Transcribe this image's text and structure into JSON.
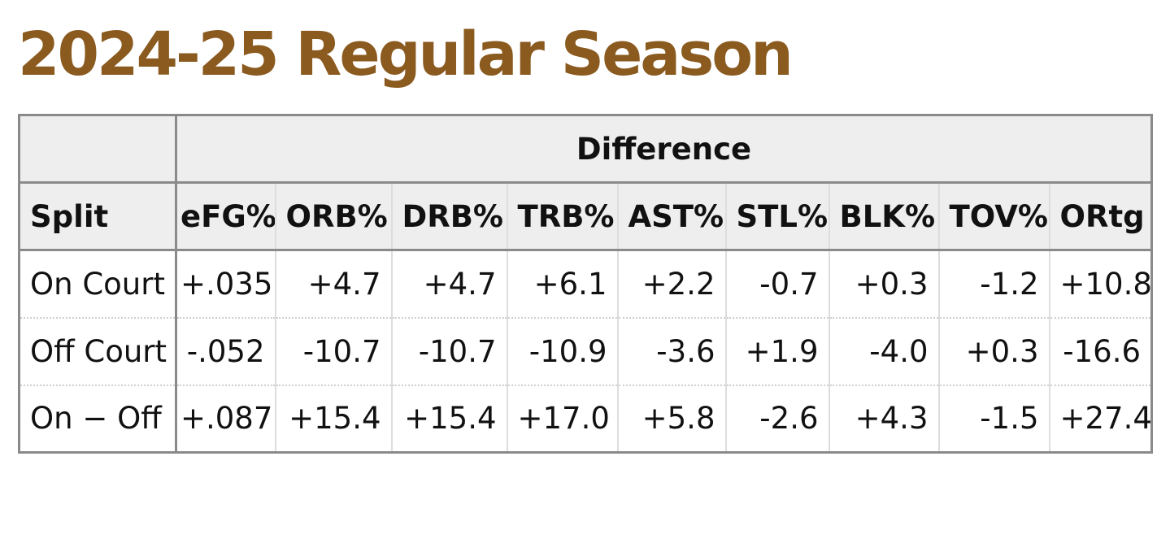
{
  "title": "2024-25 Regular Season",
  "table": {
    "group_header": "Difference",
    "columns": [
      "Split",
      "eFG%",
      "ORB%",
      "DRB%",
      "TRB%",
      "AST%",
      "STL%",
      "BLK%",
      "TOV%",
      "ORtg"
    ],
    "rows": [
      {
        "split": "On Court",
        "values": [
          "+.035",
          "+4.7",
          "+4.7",
          "+6.1",
          "+2.2",
          "-0.7",
          "+0.3",
          "-1.2",
          "+10.8"
        ]
      },
      {
        "split": "Off Court",
        "values": [
          "-.052",
          "-10.7",
          "-10.7",
          "-10.9",
          "-3.6",
          "+1.9",
          "-4.0",
          "+0.3",
          "-16.6"
        ]
      },
      {
        "split": "On − Off",
        "values": [
          "+.087",
          "+15.4",
          "+15.4",
          "+17.0",
          "+5.8",
          "-2.6",
          "+4.3",
          "-1.5",
          "+27.4"
        ]
      }
    ]
  },
  "colors": {
    "title": "#8a5a1f",
    "header_bg": "#eeeeee",
    "border": "#8a8a8a"
  }
}
